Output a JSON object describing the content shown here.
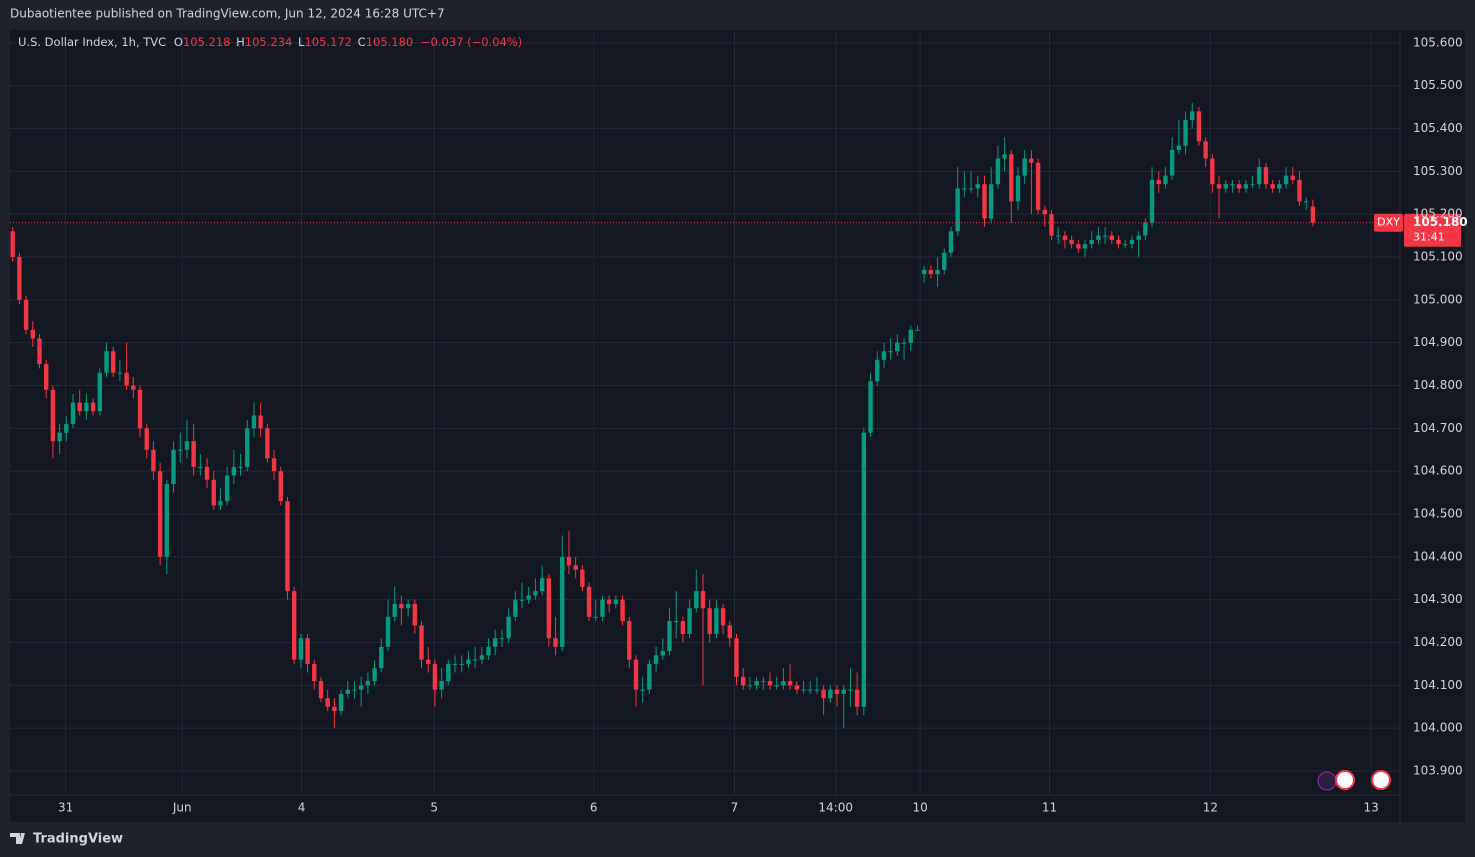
{
  "header": {
    "text": "Dubaotientee published on TradingView.com, Jun 12, 2024 16:28 UTC+7"
  },
  "footer": {
    "brand": "TradingView"
  },
  "chart_data": {
    "type": "candlestick",
    "legend": {
      "symbol": "U.S. Dollar Index, 1h, TVC",
      "o_label": "O",
      "open": "105.218",
      "h_label": "H",
      "high": "105.234",
      "l_label": "L",
      "low": "105.172",
      "c_label": "C",
      "close": "105.180",
      "change": "−0.037 (−0.04%)"
    },
    "price_tag": {
      "ticker": "DXY",
      "price": "105.180",
      "countdown": "31:41"
    },
    "up_color": "#089981",
    "down_color": "#f23645",
    "candles": [
      [
        105.16,
        105.17,
        105.09,
        105.1
      ],
      [
        105.1,
        105.11,
        104.99,
        105.0
      ],
      [
        105.0,
        105.01,
        104.92,
        104.93
      ],
      [
        104.93,
        104.95,
        104.89,
        104.91
      ],
      [
        104.91,
        104.92,
        104.84,
        104.85
      ],
      [
        104.85,
        104.86,
        104.77,
        104.79
      ],
      [
        104.79,
        104.8,
        104.63,
        104.67
      ],
      [
        104.67,
        104.71,
        104.64,
        104.69
      ],
      [
        104.69,
        104.73,
        104.67,
        104.71
      ],
      [
        104.71,
        104.78,
        104.7,
        104.76
      ],
      [
        104.76,
        104.79,
        104.73,
        104.74
      ],
      [
        104.74,
        104.78,
        104.72,
        104.76
      ],
      [
        104.76,
        104.77,
        104.73,
        104.74
      ],
      [
        104.74,
        104.84,
        104.73,
        104.83
      ],
      [
        104.83,
        104.9,
        104.82,
        104.88
      ],
      [
        104.88,
        104.89,
        104.82,
        104.83
      ],
      [
        104.83,
        104.86,
        104.81,
        104.83
      ],
      [
        104.83,
        104.9,
        104.79,
        104.8
      ],
      [
        104.8,
        104.82,
        104.77,
        104.79
      ],
      [
        104.79,
        104.8,
        104.68,
        104.7
      ],
      [
        104.7,
        104.71,
        104.63,
        104.65
      ],
      [
        104.65,
        104.67,
        104.58,
        104.6
      ],
      [
        104.6,
        104.62,
        104.38,
        104.4
      ],
      [
        104.4,
        104.58,
        104.36,
        104.57
      ],
      [
        104.57,
        104.67,
        104.55,
        104.65
      ],
      [
        104.65,
        104.69,
        104.62,
        104.65
      ],
      [
        104.65,
        104.72,
        104.63,
        104.67
      ],
      [
        104.67,
        104.71,
        104.59,
        104.61
      ],
      [
        104.61,
        104.64,
        104.59,
        104.61
      ],
      [
        104.61,
        104.63,
        104.56,
        104.58
      ],
      [
        104.58,
        104.6,
        104.51,
        104.52
      ],
      [
        104.52,
        104.56,
        104.51,
        104.53
      ],
      [
        104.53,
        104.61,
        104.52,
        104.59
      ],
      [
        104.59,
        104.65,
        104.57,
        104.61
      ],
      [
        104.61,
        104.64,
        104.59,
        104.61
      ],
      [
        104.61,
        104.72,
        104.6,
        104.7
      ],
      [
        104.7,
        104.76,
        104.68,
        104.73
      ],
      [
        104.73,
        104.76,
        104.68,
        104.7
      ],
      [
        104.7,
        104.71,
        104.62,
        104.63
      ],
      [
        104.63,
        104.65,
        104.58,
        104.6
      ],
      [
        104.6,
        104.61,
        104.52,
        104.53
      ],
      [
        104.53,
        104.54,
        104.3,
        104.32
      ],
      [
        104.32,
        104.33,
        104.15,
        104.16
      ],
      [
        104.16,
        104.22,
        104.14,
        104.21
      ],
      [
        104.21,
        104.22,
        104.13,
        104.15
      ],
      [
        104.15,
        104.16,
        104.09,
        104.11
      ],
      [
        104.11,
        104.12,
        104.06,
        104.07
      ],
      [
        104.07,
        104.09,
        104.04,
        104.05
      ],
      [
        104.05,
        104.07,
        104.0,
        104.04
      ],
      [
        104.04,
        104.09,
        104.03,
        104.08
      ],
      [
        104.08,
        104.11,
        104.07,
        104.09
      ],
      [
        104.09,
        104.11,
        104.07,
        104.09
      ],
      [
        104.09,
        104.12,
        104.05,
        104.1
      ],
      [
        104.1,
        104.13,
        104.08,
        104.11
      ],
      [
        104.11,
        104.16,
        104.1,
        104.14
      ],
      [
        104.14,
        104.21,
        104.13,
        104.19
      ],
      [
        104.19,
        104.3,
        104.18,
        104.26
      ],
      [
        104.26,
        104.33,
        104.25,
        104.29
      ],
      [
        104.29,
        104.31,
        104.24,
        104.28
      ],
      [
        104.28,
        104.3,
        104.26,
        104.29
      ],
      [
        104.29,
        104.3,
        104.22,
        104.24
      ],
      [
        104.24,
        104.25,
        104.14,
        104.16
      ],
      [
        104.16,
        104.19,
        104.13,
        104.15
      ],
      [
        104.15,
        104.16,
        104.05,
        104.09
      ],
      [
        104.09,
        104.14,
        104.07,
        104.11
      ],
      [
        104.11,
        104.16,
        104.1,
        104.15
      ],
      [
        104.15,
        104.17,
        104.13,
        104.15
      ],
      [
        104.15,
        104.17,
        104.13,
        104.15
      ],
      [
        104.15,
        104.18,
        104.14,
        104.16
      ],
      [
        104.16,
        104.19,
        104.14,
        104.16
      ],
      [
        104.16,
        104.19,
        104.15,
        104.17
      ],
      [
        104.17,
        104.21,
        104.16,
        104.19
      ],
      [
        104.19,
        104.23,
        104.17,
        104.21
      ],
      [
        104.21,
        104.23,
        104.19,
        104.21
      ],
      [
        104.21,
        104.28,
        104.2,
        104.26
      ],
      [
        104.26,
        104.32,
        104.25,
        104.3
      ],
      [
        104.3,
        104.34,
        104.28,
        104.3
      ],
      [
        104.3,
        104.33,
        104.29,
        104.31
      ],
      [
        104.31,
        104.35,
        104.3,
        104.32
      ],
      [
        104.32,
        104.38,
        104.31,
        104.35
      ],
      [
        104.35,
        104.36,
        104.19,
        104.21
      ],
      [
        104.21,
        104.26,
        104.17,
        104.19
      ],
      [
        104.19,
        104.45,
        104.18,
        104.4
      ],
      [
        104.4,
        104.46,
        104.36,
        104.38
      ],
      [
        104.38,
        104.4,
        104.35,
        104.37
      ],
      [
        104.37,
        104.38,
        104.32,
        104.33
      ],
      [
        104.33,
        104.34,
        104.25,
        104.26
      ],
      [
        104.26,
        104.3,
        104.25,
        104.26
      ],
      [
        104.26,
        104.31,
        104.25,
        104.3
      ],
      [
        104.3,
        104.31,
        104.27,
        104.29
      ],
      [
        104.29,
        104.31,
        104.28,
        104.3
      ],
      [
        104.3,
        104.31,
        104.24,
        104.25
      ],
      [
        104.25,
        104.26,
        104.14,
        104.16
      ],
      [
        104.16,
        104.17,
        104.05,
        104.09
      ],
      [
        104.09,
        104.12,
        104.06,
        104.09
      ],
      [
        104.09,
        104.16,
        104.08,
        104.15
      ],
      [
        104.15,
        104.19,
        104.13,
        104.17
      ],
      [
        104.17,
        104.21,
        104.16,
        104.18
      ],
      [
        104.18,
        104.28,
        104.17,
        104.25
      ],
      [
        104.25,
        104.32,
        104.21,
        104.25
      ],
      [
        104.25,
        104.26,
        104.2,
        104.22
      ],
      [
        104.22,
        104.3,
        104.21,
        104.28
      ],
      [
        104.28,
        104.37,
        104.27,
        104.32
      ],
      [
        104.32,
        104.36,
        104.1,
        104.28
      ],
      [
        104.28,
        104.3,
        104.2,
        104.22
      ],
      [
        104.22,
        104.3,
        104.21,
        104.28
      ],
      [
        104.28,
        104.29,
        104.22,
        104.24
      ],
      [
        104.24,
        104.25,
        104.19,
        104.21
      ],
      [
        104.21,
        104.22,
        104.1,
        104.12
      ],
      [
        104.12,
        104.14,
        104.09,
        104.1
      ],
      [
        104.1,
        104.12,
        104.09,
        104.1
      ],
      [
        104.1,
        104.12,
        104.09,
        104.11
      ],
      [
        104.11,
        104.12,
        104.09,
        104.11
      ],
      [
        104.11,
        104.13,
        104.09,
        104.1
      ],
      [
        104.1,
        104.12,
        104.09,
        104.1
      ],
      [
        104.1,
        104.14,
        104.09,
        104.11
      ],
      [
        104.11,
        104.15,
        104.09,
        104.1
      ],
      [
        104.1,
        104.11,
        104.08,
        104.09
      ],
      [
        104.09,
        104.11,
        104.08,
        104.09
      ],
      [
        104.09,
        104.11,
        104.08,
        104.09
      ],
      [
        104.09,
        104.12,
        104.08,
        104.09
      ],
      [
        104.09,
        104.1,
        104.03,
        104.07
      ],
      [
        104.07,
        104.1,
        104.06,
        104.09
      ],
      [
        104.09,
        104.1,
        104.05,
        104.08
      ],
      [
        104.08,
        104.1,
        104.0,
        104.09
      ],
      [
        104.09,
        104.14,
        104.05,
        104.09
      ],
      [
        104.09,
        104.13,
        104.03,
        104.05
      ],
      [
        104.05,
        104.7,
        104.03,
        104.69
      ],
      [
        104.69,
        104.83,
        104.68,
        104.81
      ],
      [
        104.81,
        104.88,
        104.8,
        104.86
      ],
      [
        104.86,
        104.9,
        104.84,
        104.88
      ],
      [
        104.88,
        104.91,
        104.86,
        104.88
      ],
      [
        104.88,
        104.92,
        104.87,
        104.9
      ],
      [
        104.9,
        104.91,
        104.86,
        104.9
      ],
      [
        104.9,
        104.94,
        104.88,
        104.93
      ],
      [
        104.93,
        104.94,
        104.93,
        104.93
      ],
      [
        105.06,
        105.08,
        105.04,
        105.07
      ],
      [
        105.07,
        105.08,
        105.05,
        105.06
      ],
      [
        105.06,
        105.1,
        105.03,
        105.07
      ],
      [
        105.07,
        105.12,
        105.06,
        105.11
      ],
      [
        105.11,
        105.17,
        105.1,
        105.16
      ],
      [
        105.16,
        105.31,
        105.15,
        105.26
      ],
      [
        105.26,
        105.3,
        105.24,
        105.26
      ],
      [
        105.26,
        105.3,
        105.25,
        105.26
      ],
      [
        105.26,
        105.29,
        105.24,
        105.27
      ],
      [
        105.27,
        105.29,
        105.17,
        105.19
      ],
      [
        105.19,
        105.31,
        105.18,
        105.27
      ],
      [
        105.27,
        105.36,
        105.26,
        105.33
      ],
      [
        105.33,
        105.38,
        105.3,
        105.34
      ],
      [
        105.34,
        105.35,
        105.18,
        105.23
      ],
      [
        105.23,
        105.31,
        105.21,
        105.29
      ],
      [
        105.29,
        105.35,
        105.27,
        105.33
      ],
      [
        105.33,
        105.35,
        105.2,
        105.32
      ],
      [
        105.32,
        105.33,
        105.2,
        105.21
      ],
      [
        105.21,
        105.22,
        105.17,
        105.2
      ],
      [
        105.2,
        105.21,
        105.14,
        105.15
      ],
      [
        105.15,
        105.17,
        105.13,
        105.15
      ],
      [
        105.15,
        105.16,
        105.12,
        105.14
      ],
      [
        105.14,
        105.15,
        105.12,
        105.13
      ],
      [
        105.13,
        105.14,
        105.11,
        105.12
      ],
      [
        105.12,
        105.14,
        105.1,
        105.13
      ],
      [
        105.13,
        105.16,
        105.12,
        105.14
      ],
      [
        105.14,
        105.17,
        105.13,
        105.15
      ],
      [
        105.15,
        105.17,
        105.13,
        105.15
      ],
      [
        105.15,
        105.16,
        105.13,
        105.14
      ],
      [
        105.14,
        105.15,
        105.12,
        105.13
      ],
      [
        105.13,
        105.14,
        105.12,
        105.13
      ],
      [
        105.13,
        105.15,
        105.12,
        105.14
      ],
      [
        105.14,
        105.16,
        105.1,
        105.15
      ],
      [
        105.15,
        105.19,
        105.14,
        105.18
      ],
      [
        105.18,
        105.31,
        105.17,
        105.28
      ],
      [
        105.28,
        105.3,
        105.25,
        105.27
      ],
      [
        105.27,
        105.31,
        105.26,
        105.29
      ],
      [
        105.29,
        105.38,
        105.28,
        105.35
      ],
      [
        105.35,
        105.42,
        105.34,
        105.36
      ],
      [
        105.36,
        105.44,
        105.34,
        105.42
      ],
      [
        105.42,
        105.46,
        105.4,
        105.44
      ],
      [
        105.44,
        105.45,
        105.36,
        105.37
      ],
      [
        105.37,
        105.38,
        105.31,
        105.33
      ],
      [
        105.33,
        105.34,
        105.25,
        105.27
      ],
      [
        105.27,
        105.29,
        105.19,
        105.26
      ],
      [
        105.26,
        105.28,
        105.25,
        105.27
      ],
      [
        105.27,
        105.28,
        105.25,
        105.27
      ],
      [
        105.27,
        105.28,
        105.25,
        105.26
      ],
      [
        105.26,
        105.28,
        105.25,
        105.27
      ],
      [
        105.27,
        105.29,
        105.26,
        105.27
      ],
      [
        105.27,
        105.33,
        105.26,
        105.31
      ],
      [
        105.31,
        105.32,
        105.26,
        105.27
      ],
      [
        105.27,
        105.28,
        105.25,
        105.26
      ],
      [
        105.26,
        105.28,
        105.25,
        105.27
      ],
      [
        105.27,
        105.31,
        105.26,
        105.29
      ],
      [
        105.29,
        105.31,
        105.27,
        105.28
      ],
      [
        105.28,
        105.3,
        105.22,
        105.23
      ],
      [
        105.23,
        105.24,
        105.21,
        105.23
      ],
      [
        105.218,
        105.234,
        105.172,
        105.18
      ]
    ],
    "xlim": [
      -0.4,
      207
    ],
    "xticks": [
      {
        "value": 7.9,
        "label": "31"
      },
      {
        "value": 25.3,
        "label": "Jun"
      },
      {
        "value": 43.1,
        "label": "4"
      },
      {
        "value": 62.9,
        "label": "5"
      },
      {
        "value": 86.7,
        "label": "6"
      },
      {
        "value": 107.7,
        "label": "7"
      },
      {
        "value": 122.8,
        "label": "14:00"
      },
      {
        "value": 135.4,
        "label": "10"
      },
      {
        "value": 154.7,
        "label": "11"
      },
      {
        "value": 178.7,
        "label": "12"
      },
      {
        "value": 202.7,
        "label": "13"
      }
    ],
    "ylim": [
      103.844,
      105.63
    ],
    "yticks": [
      {
        "value": 103.9,
        "label": "103.900"
      },
      {
        "value": 104.0,
        "label": "104.000"
      },
      {
        "value": 104.1,
        "label": "104.100"
      },
      {
        "value": 104.2,
        "label": "104.200"
      },
      {
        "value": 104.3,
        "label": "104.300"
      },
      {
        "value": 104.4,
        "label": "104.400"
      },
      {
        "value": 104.5,
        "label": "104.500"
      },
      {
        "value": 104.6,
        "label": "104.600"
      },
      {
        "value": 104.7,
        "label": "104.700"
      },
      {
        "value": 104.8,
        "label": "104.800"
      },
      {
        "value": 104.9,
        "label": "104.900"
      },
      {
        "value": 105.0,
        "label": "105.000"
      },
      {
        "value": 105.1,
        "label": "105.100"
      },
      {
        "value": 105.2,
        "label": "105.200"
      },
      {
        "value": 105.3,
        "label": "105.300"
      },
      {
        "value": 105.4,
        "label": "105.400"
      },
      {
        "value": 105.5,
        "label": "105.500"
      },
      {
        "value": 105.6,
        "label": "105.600"
      }
    ],
    "grid": true
  }
}
